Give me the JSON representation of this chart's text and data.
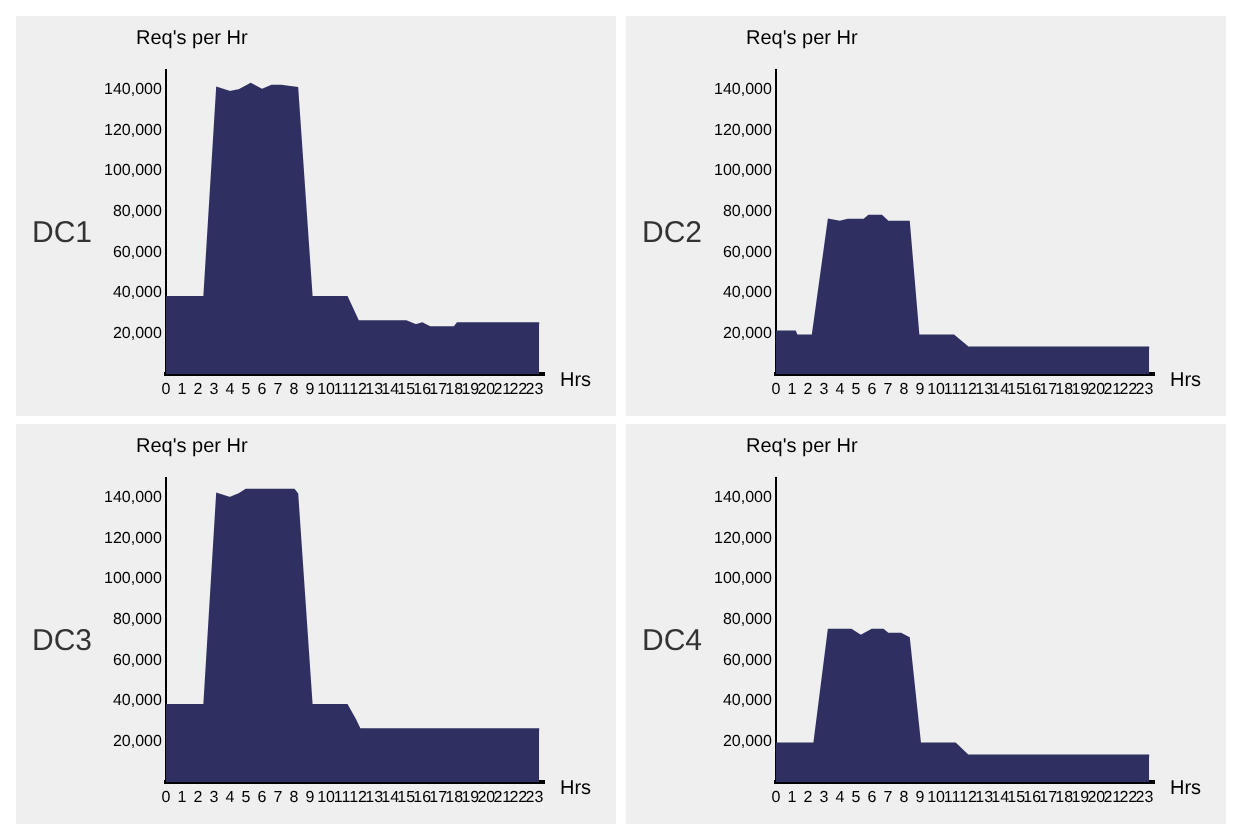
{
  "chart_data": [
    {
      "type": "area",
      "title": "DC1",
      "ylabel": "Req's per Hr",
      "xlabel": "Hrs",
      "color": "#2f3061",
      "x": [
        0,
        2.4,
        3.2,
        4,
        4.6,
        5.3,
        6,
        6.6,
        7.2,
        8.2,
        9.1,
        11.3,
        12,
        15,
        15.6,
        16,
        16.5,
        18,
        18.2,
        23.3
      ],
      "values": [
        38000,
        38000,
        141000,
        139000,
        140000,
        143000,
        140000,
        142000,
        142000,
        141000,
        38000,
        38000,
        26000,
        26000,
        24000,
        25000,
        23000,
        23000,
        25000,
        25000
      ],
      "xlim": [
        0,
        23.6
      ],
      "ylim": [
        0,
        150000
      ],
      "xticks": [
        0,
        1,
        2,
        3,
        4,
        5,
        6,
        7,
        8,
        9,
        10,
        11,
        12,
        13,
        14,
        15,
        16,
        17,
        18,
        19,
        20,
        21,
        22,
        23
      ],
      "yticks": [
        {
          "value": 20000,
          "label": "20,000"
        },
        {
          "value": 40000,
          "label": "40,000"
        },
        {
          "value": 60000,
          "label": "60,000"
        },
        {
          "value": 80000,
          "label": "80,000"
        },
        {
          "value": 100000,
          "label": "100,000"
        },
        {
          "value": 120000,
          "label": "120,000"
        },
        {
          "value": 140000,
          "label": "140,000"
        }
      ]
    },
    {
      "type": "area",
      "title": "DC2",
      "ylabel": "Req's per Hr",
      "xlabel": "Hrs",
      "color": "#2f3061",
      "x": [
        0,
        1.2,
        1.3,
        2.3,
        3.3,
        4,
        4.5,
        5.5,
        5.8,
        6.6,
        7,
        8.3,
        8.9,
        11.1,
        12,
        23.3
      ],
      "values": [
        21000,
        21000,
        19000,
        19000,
        76000,
        75000,
        76000,
        76000,
        78000,
        78000,
        75000,
        75000,
        19000,
        19000,
        13000,
        13000
      ],
      "xlim": [
        0,
        23.6
      ],
      "ylim": [
        0,
        150000
      ],
      "xticks": [
        0,
        1,
        2,
        3,
        4,
        5,
        6,
        7,
        8,
        9,
        10,
        11,
        12,
        13,
        14,
        15,
        16,
        17,
        18,
        19,
        20,
        21,
        22,
        23
      ],
      "yticks": [
        {
          "value": 20000,
          "label": "20,000"
        },
        {
          "value": 40000,
          "label": "40,000"
        },
        {
          "value": 60000,
          "label": "60,000"
        },
        {
          "value": 80000,
          "label": "80,000"
        },
        {
          "value": 100000,
          "label": "100,000"
        },
        {
          "value": 120000,
          "label": "120,000"
        },
        {
          "value": 140000,
          "label": "140,000"
        }
      ]
    },
    {
      "type": "area",
      "title": "DC3",
      "ylabel": "Req's per Hr",
      "xlabel": "Hrs",
      "color": "#2f3061",
      "x": [
        0,
        2.4,
        3.2,
        4,
        4.6,
        5,
        8,
        8.2,
        9.1,
        11.3,
        11.8,
        12.1,
        23.3
      ],
      "values": [
        38000,
        38000,
        142000,
        140000,
        142000,
        144000,
        144000,
        142000,
        38000,
        38000,
        31000,
        26000,
        26000
      ],
      "xlim": [
        0,
        23.6
      ],
      "ylim": [
        0,
        150000
      ],
      "xticks": [
        0,
        1,
        2,
        3,
        4,
        5,
        6,
        7,
        8,
        9,
        10,
        11,
        12,
        13,
        14,
        15,
        16,
        17,
        18,
        19,
        20,
        21,
        22,
        23
      ],
      "yticks": [
        {
          "value": 20000,
          "label": "20,000"
        },
        {
          "value": 40000,
          "label": "40,000"
        },
        {
          "value": 60000,
          "label": "60,000"
        },
        {
          "value": 80000,
          "label": "80,000"
        },
        {
          "value": 100000,
          "label": "100,000"
        },
        {
          "value": 120000,
          "label": "120,000"
        },
        {
          "value": 140000,
          "label": "140,000"
        }
      ]
    },
    {
      "type": "area",
      "title": "DC4",
      "ylabel": "Req's per Hr",
      "xlabel": "Hrs",
      "color": "#2f3061",
      "x": [
        0,
        2.4,
        3.3,
        4.7,
        5.3,
        6,
        6.7,
        7,
        7.8,
        8.3,
        9,
        11.2,
        12,
        23.3
      ],
      "values": [
        19000,
        19000,
        75000,
        75000,
        72000,
        75000,
        75000,
        73000,
        73000,
        71000,
        19000,
        19000,
        13000,
        13000
      ],
      "xlim": [
        0,
        23.6
      ],
      "ylim": [
        0,
        150000
      ],
      "xticks": [
        0,
        1,
        2,
        3,
        4,
        5,
        6,
        7,
        8,
        9,
        10,
        11,
        12,
        13,
        14,
        15,
        16,
        17,
        18,
        19,
        20,
        21,
        22,
        23
      ],
      "yticks": [
        {
          "value": 20000,
          "label": "20,000"
        },
        {
          "value": 40000,
          "label": "40,000"
        },
        {
          "value": 60000,
          "label": "60,000"
        },
        {
          "value": 80000,
          "label": "80,000"
        },
        {
          "value": 100000,
          "label": "100,000"
        },
        {
          "value": 120000,
          "label": "120,000"
        },
        {
          "value": 140000,
          "label": "140,000"
        }
      ]
    }
  ]
}
